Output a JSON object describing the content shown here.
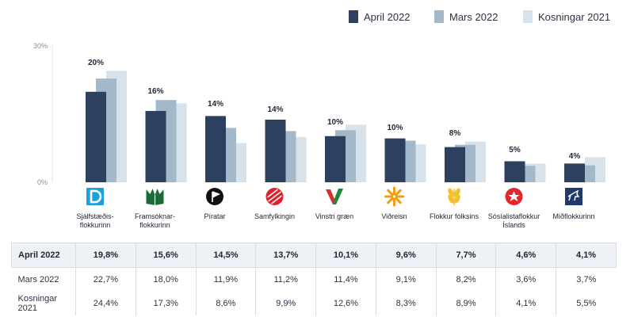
{
  "chart_data": {
    "type": "bar",
    "ylim": [
      0,
      30
    ],
    "ytick_labels": [
      "30%",
      "0%"
    ],
    "legend": [
      "April 2022",
      "Mars 2022",
      "Kosningar 2021"
    ],
    "colors": [
      "#2e4060",
      "#a3b9c9",
      "#d8e2ea"
    ],
    "series_values": [
      [
        19.8,
        15.6,
        14.5,
        13.7,
        10.1,
        9.6,
        7.7,
        4.6,
        4.1
      ],
      [
        22.7,
        18.0,
        11.9,
        11.2,
        11.4,
        9.1,
        8.2,
        3.6,
        3.7
      ],
      [
        24.4,
        17.3,
        8.6,
        9.9,
        12.6,
        8.3,
        8.9,
        4.1,
        5.5
      ]
    ],
    "value_labels": [
      "20%",
      "16%",
      "14%",
      "14%",
      "10%",
      "10%",
      "8%",
      "5%",
      "4%"
    ],
    "parties": [
      {
        "name": [
          "Sjálfstæðis-",
          "flokkurinn"
        ],
        "icon": "d-letter-logo",
        "color": "#1da1dc"
      },
      {
        "name": [
          "Framsóknar-",
          "flokkurinn"
        ],
        "icon": "book-leaves-logo",
        "color": "#1a6b3a"
      },
      {
        "name": [
          "Píratar"
        ],
        "icon": "pirate-flag-logo",
        "color": "#111111"
      },
      {
        "name": [
          "Samfylkingin"
        ],
        "icon": "rose-circle-logo",
        "color": "#e2202a"
      },
      {
        "name": [
          "Vinstri græn"
        ],
        "icon": "v-check-logo",
        "color": "#d63031"
      },
      {
        "name": [
          "Viðreisn"
        ],
        "icon": "sun-star-logo",
        "color": "#f39c12"
      },
      {
        "name": [
          "Flokkur fólksins"
        ],
        "icon": "wheat-logo",
        "color": "#f2c12e"
      },
      {
        "name": [
          "Sósíalistaflokkur",
          "Íslands"
        ],
        "icon": "star-fist-logo",
        "color": "#e0282e"
      },
      {
        "name": [
          "Miðflokkurinn"
        ],
        "icon": "horse-logo",
        "color": "#1f3a6b"
      }
    ]
  },
  "table": {
    "rows": [
      {
        "label": "April 2022",
        "values": [
          "19,8%",
          "15,6%",
          "14,5%",
          "13,7%",
          "10,1%",
          "9,6%",
          "7,7%",
          "4,6%",
          "4,1%"
        ]
      },
      {
        "label": "Mars 2022",
        "values": [
          "22,7%",
          "18,0%",
          "11,9%",
          "11,2%",
          "11,4%",
          "9,1%",
          "8,2%",
          "3,6%",
          "3,7%"
        ]
      },
      {
        "label": "Kosningar 2021",
        "values": [
          "24,4%",
          "17,3%",
          "8,6%",
          "9,9%",
          "12,6%",
          "8,3%",
          "8,9%",
          "4,1%",
          "5,5%"
        ]
      }
    ]
  }
}
